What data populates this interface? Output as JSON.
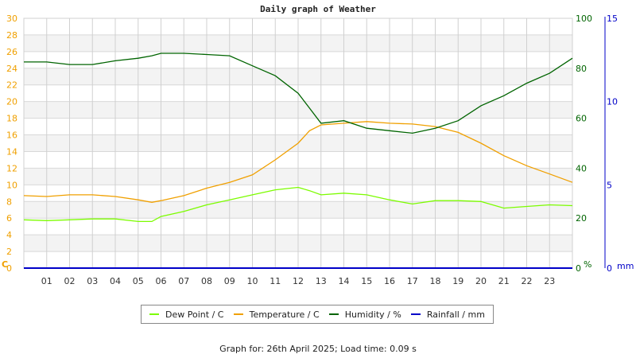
{
  "chart_data": {
    "type": "line",
    "title": "Daily graph of Weather",
    "xlabel": "",
    "x_ticks": [
      "01",
      "02",
      "03",
      "04",
      "05",
      "06",
      "07",
      "08",
      "09",
      "10",
      "11",
      "12",
      "13",
      "14",
      "15",
      "16",
      "17",
      "18",
      "19",
      "20",
      "21",
      "22",
      "23"
    ],
    "x": [
      0,
      1,
      2,
      3,
      4,
      5,
      5.6,
      6,
      7,
      8,
      9,
      10,
      11,
      12,
      12.5,
      13,
      14,
      15,
      16,
      17,
      18,
      19,
      20,
      21,
      22,
      23,
      24
    ],
    "axes": {
      "left": {
        "label": "C",
        "ylim": [
          0,
          30
        ],
        "ticks": [
          0,
          2,
          4,
          6,
          8,
          10,
          12,
          14,
          16,
          18,
          20,
          22,
          24,
          26,
          28,
          30
        ],
        "color": "#f0a000"
      },
      "right_humidity": {
        "label": "%",
        "ylim": [
          0,
          100
        ],
        "ticks": [
          0,
          20,
          40,
          60,
          80,
          100
        ],
        "color": "#006400"
      },
      "right_rain": {
        "label": "mm",
        "ylim": [
          0,
          15
        ],
        "ticks": [
          0,
          5,
          10,
          15
        ],
        "color": "#0000c8"
      }
    },
    "grid": true,
    "legend_position": "bottom",
    "series": [
      {
        "name": "Dew Point / C",
        "axis": "left",
        "color": "#7cfc00",
        "values": [
          5.8,
          5.7,
          5.8,
          5.9,
          5.9,
          5.6,
          5.6,
          6.2,
          6.8,
          7.6,
          8.2,
          8.8,
          9.4,
          9.7,
          9.3,
          8.8,
          9.0,
          8.8,
          8.2,
          7.7,
          8.1,
          8.1,
          8.0,
          7.2,
          7.4,
          7.6,
          7.5
        ]
      },
      {
        "name": "Temperature / C",
        "axis": "left",
        "color": "#f0a000",
        "values": [
          8.7,
          8.6,
          8.8,
          8.8,
          8.6,
          8.2,
          7.9,
          8.1,
          8.7,
          9.6,
          10.3,
          11.2,
          13.0,
          15.0,
          16.5,
          17.2,
          17.4,
          17.6,
          17.4,
          17.3,
          17.0,
          16.3,
          15.0,
          13.5,
          12.3,
          11.3,
          10.3
        ]
      },
      {
        "name": "Humidity / %",
        "axis": "right_humidity",
        "color": "#006400",
        "values": [
          82.5,
          82.5,
          81.5,
          81.5,
          83,
          84,
          85,
          86,
          86,
          85.5,
          85,
          81,
          77,
          70,
          64,
          58,
          59,
          56,
          55,
          54,
          56,
          59,
          65,
          69,
          74,
          78,
          84
        ]
      },
      {
        "name": "Rainfall / mm",
        "axis": "right_rain",
        "color": "#0000c8",
        "values": [
          0,
          0,
          0,
          0,
          0,
          0,
          0,
          0,
          0,
          0,
          0,
          0,
          0,
          0,
          0,
          0,
          0,
          0,
          0,
          0,
          0,
          0,
          0,
          0,
          0,
          0,
          0
        ]
      }
    ]
  },
  "legend": {
    "items": [
      {
        "label": "Dew Point / C",
        "color": "#7cfc00"
      },
      {
        "label": "Temperature / C",
        "color": "#f0a000"
      },
      {
        "label": "Humidity / %",
        "color": "#006400"
      },
      {
        "label": "Rainfall / mm",
        "color": "#0000c8"
      }
    ]
  },
  "footer": "Graph for: 26th April 2025; Load time: 0.09 s"
}
